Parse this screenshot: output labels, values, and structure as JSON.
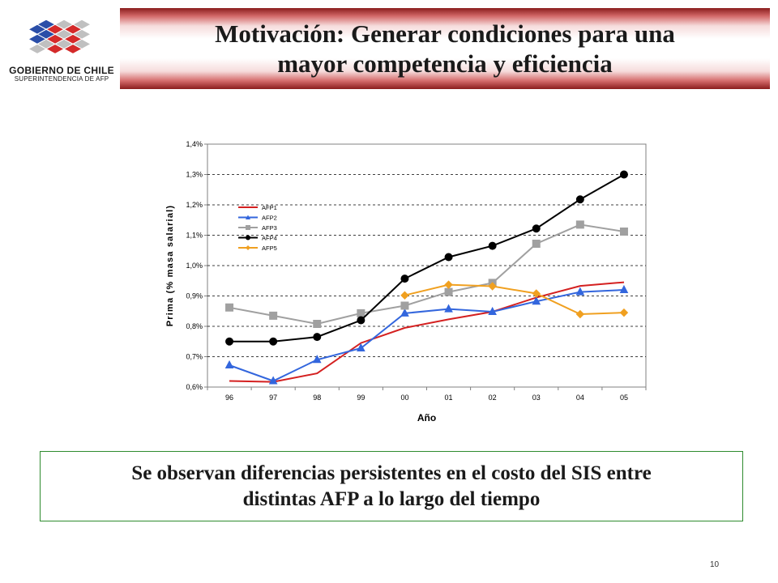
{
  "header": {
    "title_line1": "Motivación: Generar condiciones para una",
    "title_line2": "mayor competencia y eficiencia"
  },
  "logo": {
    "line1": "GOBIERNO DE CHILE",
    "line2": "SUPERINTENDENCIA DE AFP"
  },
  "callout": {
    "line1": "Se observan diferencias persistentes en el costo del SIS entre",
    "line2": "distintas AFP a lo largo del tiempo"
  },
  "page_number": "10",
  "chart_data": {
    "type": "line",
    "xlabel": "Año",
    "ylabel": "Prima (% masa salarial)",
    "categories": [
      "96",
      "97",
      "98",
      "99",
      "00",
      "01",
      "02",
      "03",
      "04",
      "05"
    ],
    "ylim": [
      0.6,
      1.4
    ],
    "yticks": [
      0.6,
      0.7,
      0.8,
      0.9,
      1.0,
      1.1,
      1.2,
      1.3,
      1.4
    ],
    "ytick_labels": [
      "0,6%",
      "0,7%",
      "0,8%",
      "0,9%",
      "1,0%",
      "1,1%",
      "1,2%",
      "1,3%",
      "1,4%"
    ],
    "grid": "horizontal-dashed",
    "legend_position": "top-left",
    "series": [
      {
        "name": "AFP1",
        "color": "#d42020",
        "marker": "none",
        "values": [
          0.62,
          0.617,
          0.645,
          0.745,
          0.795,
          0.823,
          0.848,
          0.895,
          0.933,
          0.945
        ]
      },
      {
        "name": "AFP2",
        "color": "#3366dd",
        "marker": "triangle",
        "values": [
          0.672,
          0.62,
          0.69,
          0.728,
          0.843,
          0.857,
          0.848,
          0.882,
          0.913,
          0.92
        ]
      },
      {
        "name": "AFP3",
        "color": "#a0a0a0",
        "marker": "square",
        "values": [
          0.862,
          0.835,
          0.808,
          0.843,
          0.868,
          0.913,
          0.943,
          1.072,
          1.135,
          1.112
        ]
      },
      {
        "name": "AFP4",
        "color": "#000000",
        "marker": "circle",
        "values": [
          0.75,
          0.75,
          0.765,
          0.82,
          0.957,
          1.028,
          1.065,
          1.122,
          1.218,
          1.3
        ]
      },
      {
        "name": "AFP5",
        "color": "#f0a020",
        "marker": "diamond",
        "values": [
          null,
          null,
          null,
          null,
          0.902,
          0.937,
          0.932,
          0.908,
          0.84,
          0.845
        ]
      }
    ]
  }
}
